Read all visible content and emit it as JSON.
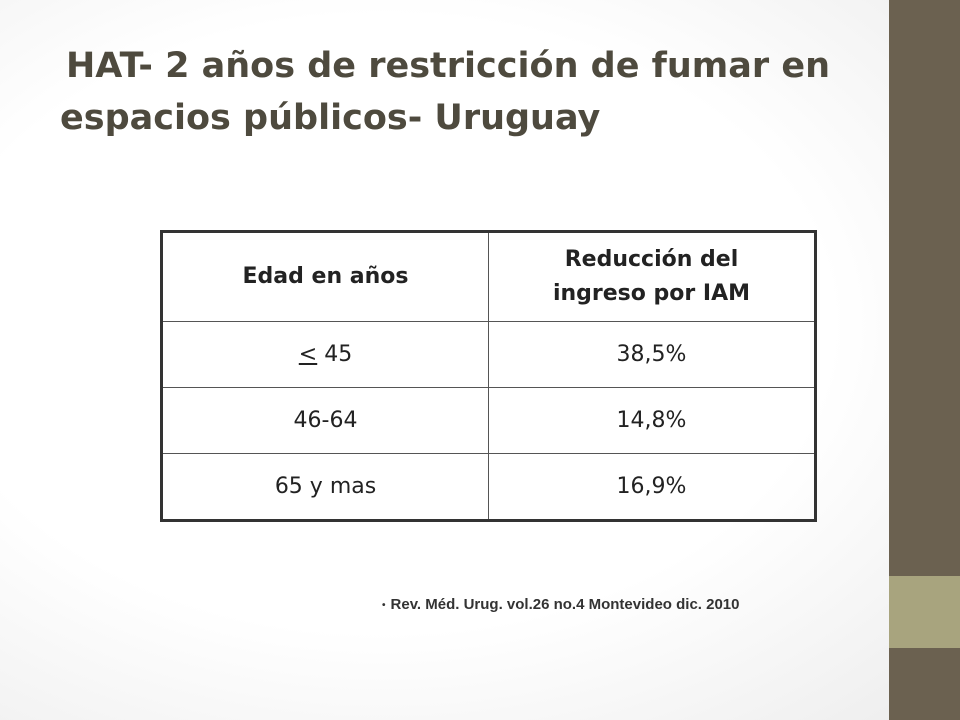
{
  "slide": {
    "title_line1": "HAT- 2 años de restricción de fumar en",
    "title_line2": "espacios públicos- Uruguay"
  },
  "table": {
    "headers": [
      "Edad en años",
      "Reducción del ingreso por IAM"
    ],
    "rows": [
      {
        "age_symbol": "<",
        "age_value": " 45",
        "reduction": "38,5%"
      },
      {
        "age": "46-64",
        "reduction": "14,8%"
      },
      {
        "age": "65 y mas",
        "reduction": "16,9%"
      }
    ]
  },
  "reference": {
    "bullet": "•",
    "text": "Rev. Méd. Urug. vol.26 no.4 Montevideo dic. 2010"
  },
  "colors": {
    "sidebar": "#6b6150",
    "sidebar_accent": "#a8a47e",
    "title": "#4e4a3e"
  }
}
